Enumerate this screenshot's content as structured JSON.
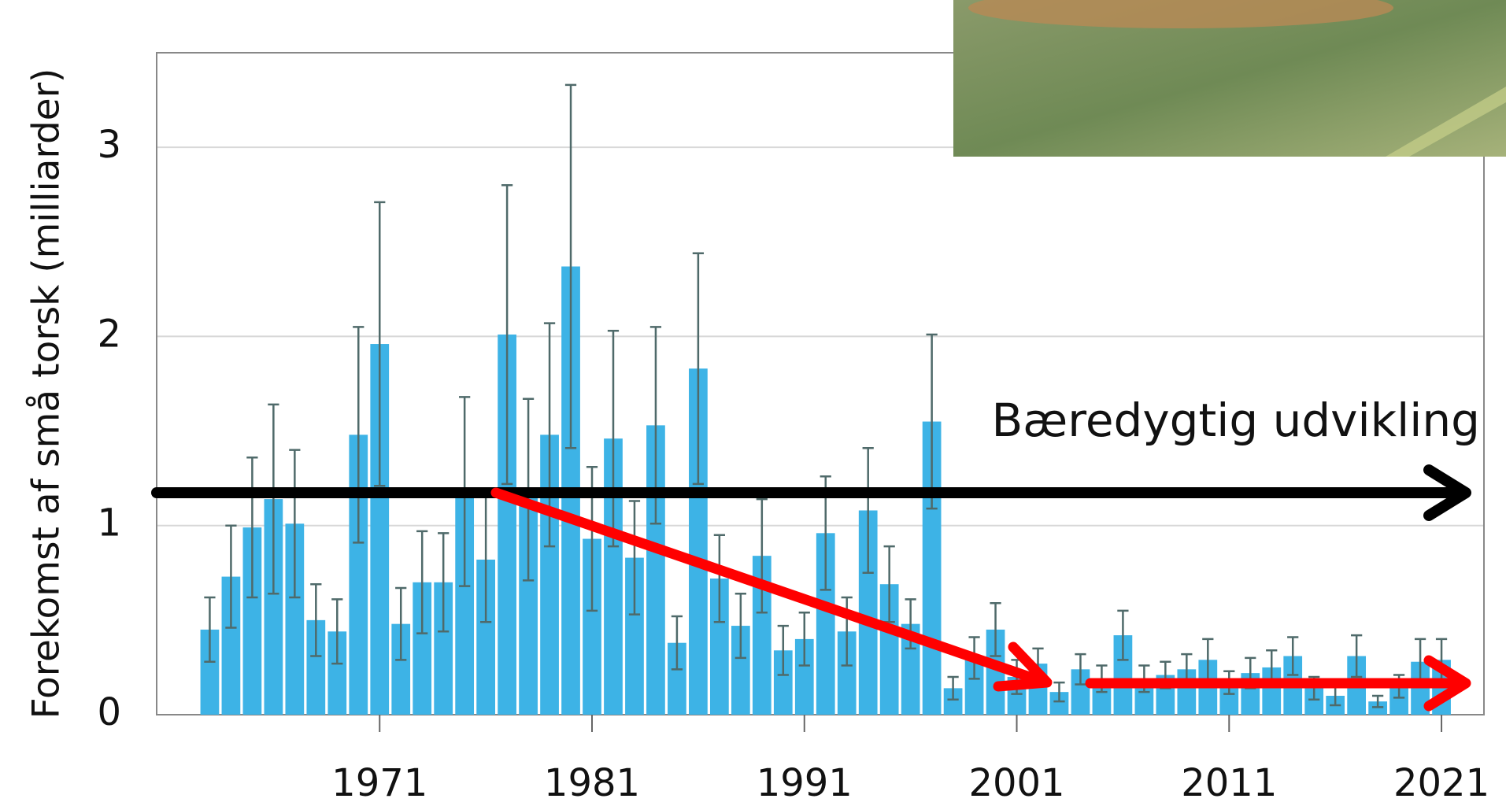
{
  "chart_data": {
    "type": "bar",
    "ylabel": "Forekomst af små torsk (milliarder)",
    "annotation": "Bæredygtig udvikling",
    "x": [
      1963,
      1964,
      1965,
      1966,
      1967,
      1968,
      1969,
      1970,
      1971,
      1972,
      1973,
      1974,
      1975,
      1976,
      1977,
      1978,
      1979,
      1980,
      1981,
      1982,
      1983,
      1984,
      1985,
      1986,
      1987,
      1988,
      1989,
      1990,
      1991,
      1992,
      1993,
      1994,
      1995,
      1996,
      1997,
      1998,
      1999,
      2000,
      2001,
      2002,
      2003,
      2004,
      2005,
      2006,
      2007,
      2008,
      2009,
      2010,
      2011,
      2012,
      2013,
      2014,
      2015,
      2016,
      2017,
      2018,
      2019,
      2020,
      2021
    ],
    "values": [
      0.45,
      0.73,
      0.99,
      1.14,
      1.01,
      0.5,
      0.44,
      1.48,
      1.96,
      0.48,
      0.7,
      0.7,
      1.18,
      0.82,
      2.01,
      1.19,
      1.48,
      2.37,
      0.93,
      1.46,
      0.83,
      1.53,
      0.38,
      1.83,
      0.72,
      0.47,
      0.84,
      0.34,
      0.4,
      0.96,
      0.44,
      1.08,
      0.69,
      0.48,
      1.55,
      0.14,
      0.3,
      0.45,
      0.2,
      0.27,
      0.12,
      0.24,
      0.19,
      0.42,
      0.19,
      0.21,
      0.24,
      0.29,
      0.17,
      0.22,
      0.25,
      0.31,
      0.14,
      0.1,
      0.31,
      0.07,
      0.15,
      0.28,
      0.29
    ],
    "errors": [
      0.17,
      0.27,
      0.37,
      0.5,
      0.39,
      0.19,
      0.17,
      0.57,
      0.75,
      0.19,
      0.27,
      0.26,
      0.5,
      0.33,
      0.79,
      0.48,
      0.59,
      0.96,
      0.38,
      0.57,
      0.3,
      0.52,
      0.14,
      0.61,
      0.23,
      0.17,
      0.3,
      0.13,
      0.14,
      0.3,
      0.18,
      0.33,
      0.2,
      0.13,
      0.46,
      0.06,
      0.11,
      0.14,
      0.09,
      0.08,
      0.05,
      0.08,
      0.07,
      0.13,
      0.07,
      0.07,
      0.08,
      0.11,
      0.06,
      0.08,
      0.09,
      0.1,
      0.06,
      0.05,
      0.11,
      0.03,
      0.06,
      0.12,
      0.11
    ],
    "color": "#3db3e6",
    "error_color": "#4f6a6a",
    "xlim": [
      1960.5,
      2023
    ],
    "ylim": [
      0,
      3.5
    ],
    "xticks": [
      1971,
      1981,
      1991,
      2001,
      2011,
      2021
    ],
    "yticks": [
      0,
      1,
      2,
      3
    ],
    "grid": true
  }
}
